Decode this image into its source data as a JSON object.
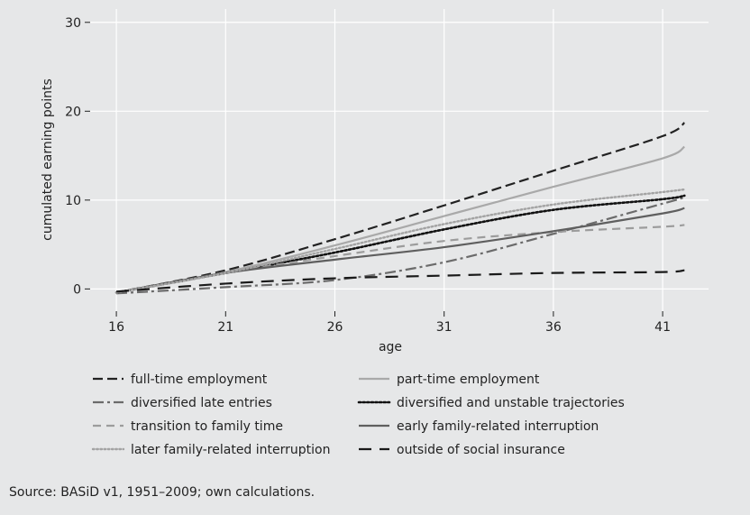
{
  "chart_data": {
    "type": "line",
    "xlabel": "age",
    "ylabel": "cumulated earning points",
    "x_ticks": [
      16,
      21,
      26,
      31,
      36,
      41
    ],
    "y_ticks": [
      0,
      10,
      20,
      30
    ],
    "xlim": [
      14.8,
      43.1
    ],
    "ylim": [
      -2.5,
      31.5
    ],
    "grid": true,
    "legend_position": "bottom",
    "series": [
      {
        "name": "full-time employment",
        "color": "#222222",
        "dash": "long-dash",
        "x": [
          16,
          21,
          26,
          31,
          36,
          41,
          42
        ],
        "y": [
          -0.4,
          2.1,
          5.6,
          9.4,
          13.3,
          17.2,
          18.7
        ]
      },
      {
        "name": "part-time employment",
        "color": "#a9a9a9",
        "dash": "solid",
        "x": [
          16,
          21,
          26,
          31,
          36,
          41,
          42
        ],
        "y": [
          -0.4,
          1.9,
          4.9,
          8.2,
          11.5,
          14.7,
          16.0
        ]
      },
      {
        "name": "diversified late entries",
        "color": "#6b6b6b",
        "dash": "dash-dot",
        "x": [
          16,
          21,
          26,
          31,
          36,
          41,
          42
        ],
        "y": [
          -0.5,
          0.2,
          1.0,
          3.0,
          6.2,
          9.6,
          10.3
        ]
      },
      {
        "name": "diversified and unstable trajectories",
        "color": "#111111",
        "dash": "dotted",
        "x": [
          16,
          21,
          26,
          31,
          36,
          41,
          42
        ],
        "y": [
          -0.4,
          1.8,
          4.1,
          6.7,
          8.9,
          10.1,
          10.5
        ]
      },
      {
        "name": "transition to family time",
        "color": "#9c9c9c",
        "dash": "dash",
        "x": [
          16,
          21,
          26,
          31,
          36,
          41,
          42
        ],
        "y": [
          -0.4,
          1.8,
          3.7,
          5.4,
          6.4,
          7.0,
          7.2
        ]
      },
      {
        "name": "early family-related interruption",
        "color": "#5f5f5f",
        "dash": "solid",
        "x": [
          16,
          21,
          26,
          31,
          36,
          41,
          42
        ],
        "y": [
          -0.4,
          1.8,
          3.3,
          4.7,
          6.5,
          8.5,
          9.1
        ]
      },
      {
        "name": "later family-related interruption",
        "color": "#a3a3a3",
        "dash": "fine-dotted",
        "x": [
          16,
          21,
          26,
          31,
          36,
          41,
          42
        ],
        "y": [
          -0.4,
          1.8,
          4.5,
          7.3,
          9.5,
          10.9,
          11.2
        ]
      },
      {
        "name": "outside of social insurance",
        "color": "#1a1a1a",
        "dash": "sparse-dash",
        "x": [
          16,
          21,
          26,
          31,
          36,
          41,
          42
        ],
        "y": [
          -0.3,
          0.6,
          1.2,
          1.5,
          1.8,
          1.9,
          2.1
        ]
      }
    ]
  },
  "source_note": "Source: BASiD v1, 1951–2009; own calculations."
}
